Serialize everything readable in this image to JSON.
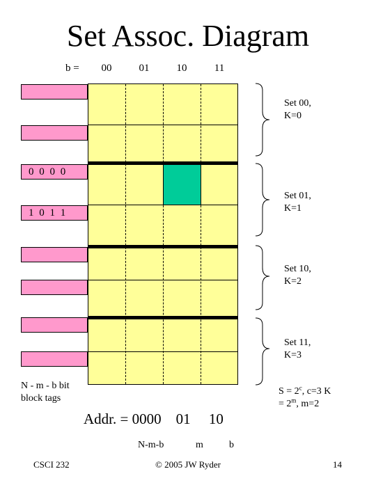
{
  "title": "Set Assoc. Diagram",
  "b_label": "b =",
  "column_labels": [
    "00",
    "01",
    "10",
    "11"
  ],
  "tags": [
    {
      "text": ""
    },
    {
      "text": ""
    },
    {
      "text": "0 0 0 0"
    },
    {
      "text": "1 0 1 1"
    },
    {
      "text": ""
    },
    {
      "text": ""
    },
    {
      "text": ""
    },
    {
      "text": ""
    }
  ],
  "sets": [
    {
      "line1": "Set 00,",
      "line2": "K=0"
    },
    {
      "line1": "Set 01,",
      "line2": "K=1"
    },
    {
      "line1": "Set 10,",
      "line2": "K=2"
    },
    {
      "line1": "Set 11,",
      "line2": "K=3"
    }
  ],
  "tag_note": {
    "line1": "N - m - b bit",
    "line2": "block  tags"
  },
  "formula": {
    "s_prefix": "S = 2",
    "s_exp": "c",
    "s_mid": ", c=3   K",
    "k_prefix": "= 2",
    "k_exp": "m",
    "k_suffix": ", m=2"
  },
  "address": {
    "text": "Addr. = 0000    01     10",
    "sub_nmb": "N-m-b",
    "sub_m": "m",
    "sub_b": "b"
  },
  "footer": {
    "left": "CSCI 232",
    "center": "© 2005 JW Ryder",
    "right": "14"
  },
  "colors": {
    "cell": "#ffff99",
    "tag": "#ff99cc",
    "highlight": "#00cc99"
  }
}
